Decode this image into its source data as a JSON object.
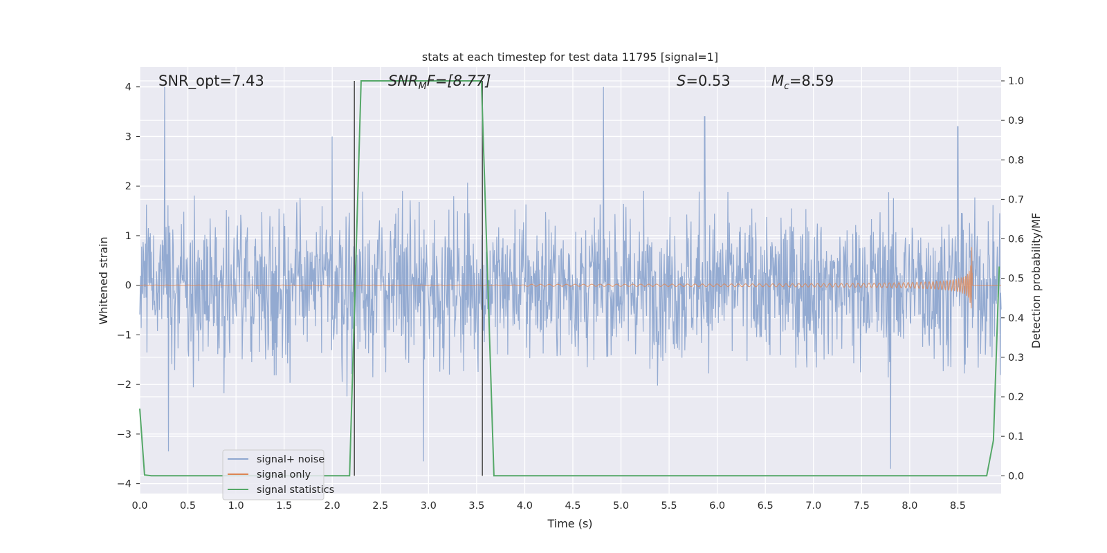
{
  "chart_data": {
    "type": "line",
    "title": "stats at each timestep for test data 11795 [signal=1]",
    "xlabel": "Time (s)",
    "ylabel_left": "Whitened strain",
    "ylabel_right": "Detection probability/MF",
    "xlim": [
      0.0,
      8.95
    ],
    "ylim_left": [
      -4.2,
      4.4
    ],
    "ylim_right": [
      -0.045,
      1.035
    ],
    "x_ticks": [
      "0.0",
      "0.5",
      "1.0",
      "1.5",
      "2.0",
      "2.5",
      "3.0",
      "3.5",
      "4.0",
      "4.5",
      "5.0",
      "5.5",
      "6.0",
      "6.5",
      "7.0",
      "7.5",
      "8.0",
      "8.5"
    ],
    "y_ticks_left": [
      "4",
      "3",
      "2",
      "1",
      "0",
      "−1",
      "−2",
      "−3",
      "−4"
    ],
    "y_ticks_right": [
      "1.0",
      "0.9",
      "0.8",
      "0.7",
      "0.6",
      "0.5",
      "0.4",
      "0.3",
      "0.2",
      "0.1",
      "0.0"
    ],
    "grid": true,
    "legend_position": "lower-left",
    "annotations": {
      "snr_opt": "SNR_opt=7.43",
      "snr_mf_main": "SNR",
      "snr_mf_sub": "M",
      "snr_mf_rest": "F=[8.77]",
      "s_main": "S",
      "s_rest": "=0.53",
      "mc_main": "M",
      "mc_sub": "c",
      "mc_rest": "=8.59"
    },
    "series": [
      {
        "name": "signal+ noise",
        "color": "#8ea6cf",
        "description_type": "noise",
        "envelope_typical": [
          -1.6,
          2.0
        ],
        "peaks": [
          {
            "x": 0.26,
            "y": 4.0
          },
          {
            "x": 4.82,
            "y": 4.0
          },
          {
            "x": 2.0,
            "y": 3.0
          },
          {
            "x": 5.87,
            "y": 3.4
          },
          {
            "x": 8.5,
            "y": 3.2
          },
          {
            "x": 7.8,
            "y": -3.7
          },
          {
            "x": 2.95,
            "y": -3.55
          },
          {
            "x": 0.3,
            "y": -3.35
          }
        ]
      },
      {
        "name": "signal only",
        "color": "#dd8452",
        "description_type": "chirp",
        "chirp_start": 4.0,
        "merger_time": 8.65,
        "peak_amplitude": 1.0,
        "min_amplitude": -0.8
      },
      {
        "name": "signal statistics",
        "color": "#55a868",
        "axis": "right",
        "x": [
          0.0,
          0.05,
          0.12,
          2.18,
          2.3,
          3.55,
          3.68,
          8.8,
          8.87,
          8.93
        ],
        "y": [
          0.17,
          0.002,
          0.0,
          0.0,
          1.0,
          1.0,
          0.0,
          0.0,
          0.09,
          0.53
        ]
      }
    ],
    "vlines": [
      {
        "x": 2.23,
        "y_range_right": [
          0.0,
          1.0
        ],
        "color": "#555555"
      },
      {
        "x": 3.56,
        "y_range_right": [
          0.0,
          1.0
        ],
        "color": "#555555"
      }
    ]
  }
}
